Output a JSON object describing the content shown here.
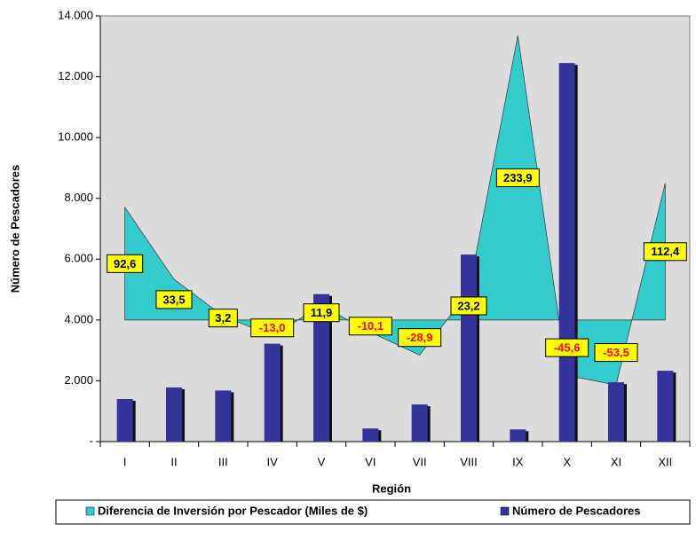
{
  "chart_data": {
    "type": "combo",
    "xlabel": "Región",
    "ylabel": "Número de Pescadores",
    "categories": [
      "I",
      "II",
      "III",
      "IV",
      "V",
      "VI",
      "VII",
      "VIII",
      "IX",
      "X",
      "XI",
      "XII"
    ],
    "ylim": [
      0,
      14000
    ],
    "yticks": [
      {
        "value": 0,
        "label": "-"
      },
      {
        "value": 2000,
        "label": "2.000"
      },
      {
        "value": 4000,
        "label": "4.000"
      },
      {
        "value": 6000,
        "label": "6.000"
      },
      {
        "value": 8000,
        "label": "8.000"
      },
      {
        "value": 10000,
        "label": "10.000"
      },
      {
        "value": 12000,
        "label": "12.000"
      },
      {
        "value": 14000,
        "label": "14.000"
      }
    ],
    "y2lim": [
      -100,
      250
    ],
    "series": [
      {
        "name": "Diferencia de Inversión por Pescador (Miles de $)",
        "color": "#33CCCC",
        "type": "area",
        "axis": "y2",
        "values": [
          92.6,
          33.5,
          3.2,
          -13.0,
          11.9,
          -10.1,
          -28.9,
          23.2,
          233.9,
          -45.6,
          -53.5,
          112.4
        ],
        "value_labels": [
          "92,6",
          "33,5",
          "3,2",
          "-13,0",
          "11,9",
          "-10,1",
          "-28,9",
          "23,2",
          "233,9",
          "-45,6",
          "-53,5",
          "112,4"
        ]
      },
      {
        "name": "Número de Pescadores",
        "color": "#333399",
        "type": "bar",
        "values": [
          1400,
          1780,
          1680,
          3220,
          4850,
          430,
          1220,
          6150,
          400,
          12450,
          1950,
          2330
        ]
      }
    ],
    "legend": "bottom"
  }
}
